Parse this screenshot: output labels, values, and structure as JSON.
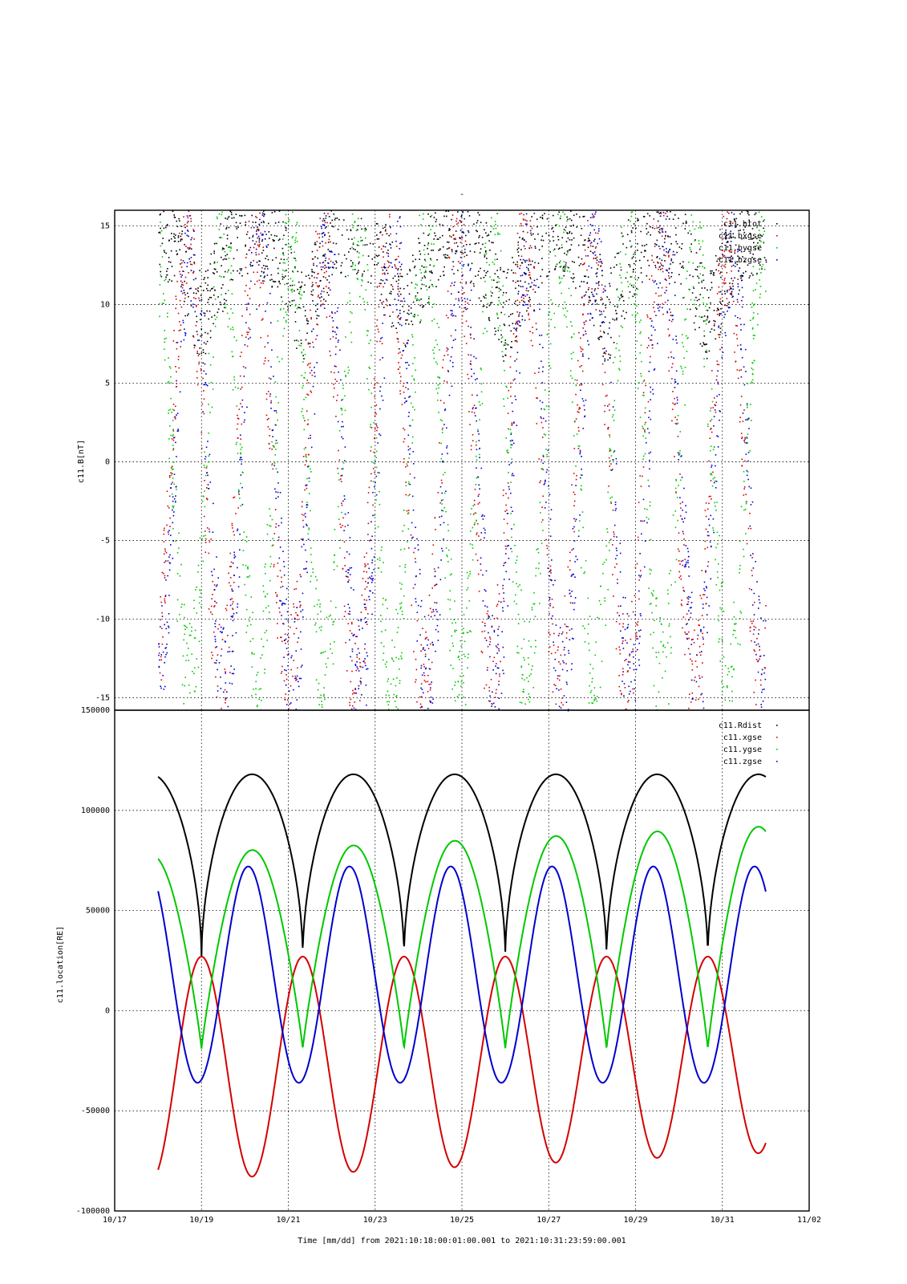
{
  "chart_data": [
    {
      "type": "scatter",
      "title": "-",
      "ylabel": "c11.B[nT]",
      "xlim": [
        "10/17",
        "11/02"
      ],
      "ylim": [
        -15.8,
        16.0
      ],
      "grid": true,
      "yticks": [
        15,
        10,
        5,
        0,
        -5,
        -10,
        -15
      ],
      "xticks_days": [
        2,
        4,
        6,
        8,
        10,
        12,
        14
      ],
      "legend": {
        "placement": "top-right",
        "entries": [
          "c11.btot",
          "c11.bxgse",
          "c11.bygse",
          "c11.bzgse"
        ]
      },
      "series": [
        {
          "name": "c11.btot",
          "color": "#000000"
        },
        {
          "name": "c11.bxgse",
          "color": "#d40000"
        },
        {
          "name": "c11.bygse",
          "color": "#00c800"
        },
        {
          "name": "c11.bzgse",
          "color": "#0000cc"
        }
      ]
    },
    {
      "type": "line",
      "ylabel": "c11.location[RE]",
      "xlabel": "Time [mm/dd]  from 2021:10:18:00:01:00.001  to  2021:10:31:23:59:00.001",
      "xlim": [
        "10/17",
        "11/02"
      ],
      "ylim": [
        -100000,
        150000
      ],
      "grid": true,
      "yticks": [
        150000,
        100000,
        50000,
        0,
        -50000,
        -100000
      ],
      "xticks": [
        "10/17",
        "10/19",
        "10/21",
        "10/23",
        "10/25",
        "10/27",
        "10/29",
        "10/31",
        "11/02"
      ],
      "legend": {
        "placement": "top-right",
        "entries": [
          "c11.Rdist",
          "c11.xgse",
          "c11.ygse",
          "c11.zgse"
        ]
      },
      "series": [
        {
          "name": "c11.Rdist",
          "color": "#000000",
          "max": 118000,
          "min": 27000
        },
        {
          "name": "c11.xgse",
          "color": "#d40000",
          "max": 27000,
          "min": -85000
        },
        {
          "name": "c11.ygse",
          "color": "#00c800",
          "max": 92000,
          "min": -21000
        },
        {
          "name": "c11.zgse",
          "color": "#0000cc",
          "max": 72000,
          "min": -36000
        }
      ],
      "data_start_day": 1.0,
      "data_end_day": 15.0
    }
  ]
}
